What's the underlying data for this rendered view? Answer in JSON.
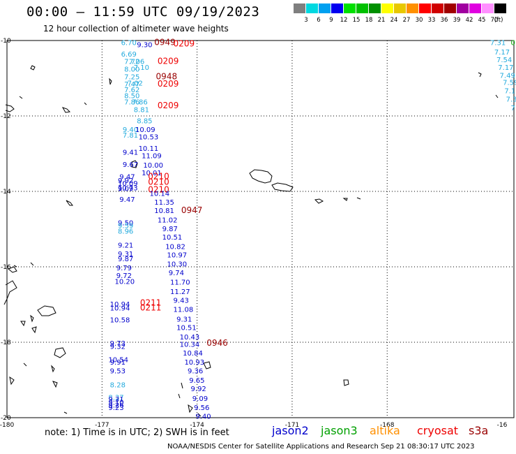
{
  "header": {
    "title": "00:00 — 11:59 UTC 09/19/2023",
    "subtitle": "12 hour collection of altimeter wave heights"
  },
  "color_legend": {
    "labels": [
      "3",
      "6",
      "9",
      "12",
      "15",
      "18",
      "21",
      "24",
      "27",
      "30",
      "33",
      "36",
      "39",
      "42",
      "45",
      "70",
      "(ft)"
    ],
    "colors": [
      "#7f7f7f",
      "#00d8e0",
      "#00a0f0",
      "#0000f0",
      "#00e000",
      "#00c000",
      "#009000",
      "#ffff00",
      "#e8c800",
      "#ff9000",
      "#ff0000",
      "#d00000",
      "#a00000",
      "#a000a0",
      "#e000e0",
      "#ff90ff",
      "#000000"
    ]
  },
  "map": {
    "x_labels": [
      "-180",
      "-177",
      "-174",
      "-171",
      "-168",
      "-16"
    ],
    "y_labels": [
      "-10",
      "-12",
      "-14",
      "-16",
      "-18",
      "-20"
    ],
    "points": [
      {
        "t": "6.70",
        "c": "#22aadd",
        "lat": -10.05,
        "lon": -176.4
      },
      {
        "t": "9.30",
        "c": "#0000cc",
        "lat": -10.1,
        "lon": -175.9
      },
      {
        "t": "0949",
        "c": "#990000",
        "lat": -10.05,
        "lon": -175.35
      },
      {
        "t": "0209",
        "c": "#ee0000",
        "lat": -10.08,
        "lon": -174.75
      },
      {
        "t": "6.69",
        "c": "#22aadd",
        "lat": -10.35,
        "lon": -176.4
      },
      {
        "t": "7.06",
        "c": "#22aadd",
        "lat": -10.55,
        "lon": -176.15
      },
      {
        "t": "7.72",
        "c": "#22aadd",
        "lat": -10.55,
        "lon": -176.3
      },
      {
        "t": "0209",
        "c": "#ee0000",
        "lat": -10.55,
        "lon": -175.25
      },
      {
        "t": "7.10",
        "c": "#22aadd",
        "lat": -10.7,
        "lon": -176.0
      },
      {
        "t": "8.00",
        "c": "#22aadd",
        "lat": -10.75,
        "lon": -176.3
      },
      {
        "t": "7.25",
        "c": "#22aadd",
        "lat": -10.95,
        "lon": -176.3
      },
      {
        "t": "0948",
        "c": "#990000",
        "lat": -10.95,
        "lon": -175.3
      },
      {
        "t": "7.02",
        "c": "#22aadd",
        "lat": -11.12,
        "lon": -176.2
      },
      {
        "t": "7.47",
        "c": "#22aadd",
        "lat": -11.15,
        "lon": -176.3
      },
      {
        "t": "0209",
        "c": "#ee0000",
        "lat": -11.15,
        "lon": -175.25
      },
      {
        "t": "7.62",
        "c": "#22aadd",
        "lat": -11.3,
        "lon": -176.3
      },
      {
        "t": "8.50",
        "c": "#22aadd",
        "lat": -11.45,
        "lon": -176.3
      },
      {
        "t": "7.86",
        "c": "#22aadd",
        "lat": -11.62,
        "lon": -176.3
      },
      {
        "t": "7.86",
        "c": "#22aadd",
        "lat": -11.62,
        "lon": -176.05
      },
      {
        "t": "0209",
        "c": "#ee0000",
        "lat": -11.72,
        "lon": -175.25
      },
      {
        "t": "8.81",
        "c": "#22aadd",
        "lat": -11.82,
        "lon": -176.0
      },
      {
        "t": "8.85",
        "c": "#22aadd",
        "lat": -12.12,
        "lon": -175.9
      },
      {
        "t": "9.40",
        "c": "#22aadd",
        "lat": -12.35,
        "lon": -176.35
      },
      {
        "t": "10.09",
        "c": "#0000cc",
        "lat": -12.35,
        "lon": -175.95
      },
      {
        "t": "7.81",
        "c": "#22aadd",
        "lat": -12.5,
        "lon": -176.35
      },
      {
        "t": "10.53",
        "c": "#0000cc",
        "lat": -12.55,
        "lon": -175.85
      },
      {
        "t": "10.11",
        "c": "#0000cc",
        "lat": -12.85,
        "lon": -175.85
      },
      {
        "t": "9.41",
        "c": "#0000cc",
        "lat": -12.95,
        "lon": -176.35
      },
      {
        "t": "11.09",
        "c": "#0000cc",
        "lat": -13.05,
        "lon": -175.75
      },
      {
        "t": "10.00",
        "c": "#0000cc",
        "lat": -13.3,
        "lon": -175.7
      },
      {
        "t": "9.67",
        "c": "#0000cc",
        "lat": -13.28,
        "lon": -176.35
      },
      {
        "t": "10.01",
        "c": "#0000cc",
        "lat": -13.5,
        "lon": -175.75
      },
      {
        "t": "9.47",
        "c": "#0000cc",
        "lat": -13.6,
        "lon": -176.45
      },
      {
        "t": "0210",
        "c": "#ee0000",
        "lat": -13.6,
        "lon": -175.55
      },
      {
        "t": "9.92",
        "c": "#0000cc",
        "lat": -13.7,
        "lon": -176.5
      },
      {
        "t": "0210",
        "c": "#ee0000",
        "lat": -13.75,
        "lon": -175.55
      },
      {
        "t": "10.09",
        "c": "#0000cc",
        "lat": -13.78,
        "lon": -176.5
      },
      {
        "t": "10.73",
        "c": "#0000cc",
        "lat": -13.9,
        "lon": -176.5
      },
      {
        "t": "0210",
        "c": "#ee0000",
        "lat": -13.95,
        "lon": -175.55
      },
      {
        "t": "9.09",
        "c": "#0000cc",
        "lat": -13.92,
        "lon": -176.5
      },
      {
        "t": "10.14",
        "c": "#0000cc",
        "lat": -14.05,
        "lon": -175.5
      },
      {
        "t": "9.47",
        "c": "#0000cc",
        "lat": -14.2,
        "lon": -176.45
      },
      {
        "t": "11.35",
        "c": "#0000cc",
        "lat": -14.28,
        "lon": -175.35
      },
      {
        "t": "10.81",
        "c": "#0000cc",
        "lat": -14.5,
        "lon": -175.35
      },
      {
        "t": "0947",
        "c": "#990000",
        "lat": -14.5,
        "lon": -174.5
      },
      {
        "t": "11.02",
        "c": "#0000cc",
        "lat": -14.75,
        "lon": -175.25
      },
      {
        "t": "9.50",
        "c": "#0000cc",
        "lat": -14.82,
        "lon": -176.5
      },
      {
        "t": "9.59",
        "c": "#22aadd",
        "lat": -14.9,
        "lon": -176.5
      },
      {
        "t": "9.87",
        "c": "#0000cc",
        "lat": -14.98,
        "lon": -175.1
      },
      {
        "t": "8.96",
        "c": "#22aadd",
        "lat": -15.05,
        "lon": -176.5
      },
      {
        "t": "10.51",
        "c": "#0000cc",
        "lat": -15.2,
        "lon": -175.1
      },
      {
        "t": "9.21",
        "c": "#0000cc",
        "lat": -15.42,
        "lon": -176.5
      },
      {
        "t": "10.82",
        "c": "#0000cc",
        "lat": -15.45,
        "lon": -175.0
      },
      {
        "t": "9.31",
        "c": "#0000cc",
        "lat": -15.65,
        "lon": -176.5
      },
      {
        "t": "10.97",
        "c": "#0000cc",
        "lat": -15.68,
        "lon": -174.95
      },
      {
        "t": "9.87",
        "c": "#0000cc",
        "lat": -15.78,
        "lon": -176.5
      },
      {
        "t": "10.30",
        "c": "#0000cc",
        "lat": -15.92,
        "lon": -174.95
      },
      {
        "t": "9.79",
        "c": "#0000cc",
        "lat": -16.02,
        "lon": -176.55
      },
      {
        "t": "9.74",
        "c": "#0000cc",
        "lat": -16.15,
        "lon": -174.9
      },
      {
        "t": "9.72",
        "c": "#0000cc",
        "lat": -16.22,
        "lon": -176.55
      },
      {
        "t": "10.20",
        "c": "#0000cc",
        "lat": -16.38,
        "lon": -176.6
      },
      {
        "t": "11.70",
        "c": "#0000cc",
        "lat": -16.4,
        "lon": -174.85
      },
      {
        "t": "11.27",
        "c": "#0000cc",
        "lat": -16.65,
        "lon": -174.85
      },
      {
        "t": "9.43",
        "c": "#0000cc",
        "lat": -16.88,
        "lon": -174.75
      },
      {
        "t": "10.94",
        "c": "#0000cc",
        "lat": -16.98,
        "lon": -176.75
      },
      {
        "t": "0211",
        "c": "#ee0000",
        "lat": -16.95,
        "lon": -175.8
      },
      {
        "t": "10.94",
        "c": "#0000cc",
        "lat": -17.08,
        "lon": -176.75
      },
      {
        "t": "0211",
        "c": "#ee0000",
        "lat": -17.08,
        "lon": -175.8
      },
      {
        "t": "11.08",
        "c": "#0000cc",
        "lat": -17.12,
        "lon": -174.75
      },
      {
        "t": "10.58",
        "c": "#0000cc",
        "lat": -17.4,
        "lon": -176.75
      },
      {
        "t": "9.31",
        "c": "#0000cc",
        "lat": -17.38,
        "lon": -174.65
      },
      {
        "t": "10.51",
        "c": "#0000cc",
        "lat": -17.6,
        "lon": -174.65
      },
      {
        "t": "10.43",
        "c": "#0000cc",
        "lat": -17.85,
        "lon": -174.55
      },
      {
        "t": "9.73",
        "c": "#0000cc",
        "lat": -18.02,
        "lon": -176.75
      },
      {
        "t": "10.34",
        "c": "#0000cc",
        "lat": -18.05,
        "lon": -174.55
      },
      {
        "t": "0946",
        "c": "#990000",
        "lat": -18.02,
        "lon": -173.7
      },
      {
        "t": "9.32",
        "c": "#0000cc",
        "lat": -18.1,
        "lon": -176.75
      },
      {
        "t": "10.84",
        "c": "#0000cc",
        "lat": -18.28,
        "lon": -174.45
      },
      {
        "t": "10.54",
        "c": "#0000cc",
        "lat": -18.45,
        "lon": -176.8
      },
      {
        "t": "9.91",
        "c": "#0000cc",
        "lat": -18.52,
        "lon": -176.75
      },
      {
        "t": "10.93",
        "c": "#0000cc",
        "lat": -18.52,
        "lon": -174.4
      },
      {
        "t": "9.53",
        "c": "#0000cc",
        "lat": -18.75,
        "lon": -176.75
      },
      {
        "t": "9.36",
        "c": "#0000cc",
        "lat": -18.75,
        "lon": -174.3
      },
      {
        "t": "9.65",
        "c": "#0000cc",
        "lat": -19.0,
        "lon": -174.25
      },
      {
        "t": "8.28",
        "c": "#22aadd",
        "lat": -19.12,
        "lon": -176.75
      },
      {
        "t": "9.92",
        "c": "#0000cc",
        "lat": -19.22,
        "lon": -174.2
      },
      {
        "t": "8.37",
        "c": "#22aadd",
        "lat": -19.45,
        "lon": -176.8
      },
      {
        "t": "9.31",
        "c": "#0000cc",
        "lat": -19.5,
        "lon": -176.8
      },
      {
        "t": "9.09",
        "c": "#0000cc",
        "lat": -19.48,
        "lon": -174.15
      },
      {
        "t": "9.10",
        "c": "#0000cc",
        "lat": -19.58,
        "lon": -176.8
      },
      {
        "t": "9.26",
        "c": "#0000cc",
        "lat": -19.66,
        "lon": -176.8
      },
      {
        "t": "9.23",
        "c": "#0000cc",
        "lat": -19.72,
        "lon": -176.8
      },
      {
        "t": "9.56",
        "c": "#0000cc",
        "lat": -19.72,
        "lon": -174.1
      },
      {
        "t": "9.40",
        "c": "#0000cc",
        "lat": -19.95,
        "lon": -174.05
      },
      {
        "t": "7.31",
        "c": "#22aadd",
        "lat": -10.05,
        "lon": -164.75
      },
      {
        "t": "0",
        "c": "#00aa00",
        "lat": -10.05,
        "lon": -164.1
      },
      {
        "t": "7.17",
        "c": "#22aadd",
        "lat": -10.3,
        "lon": -164.62
      },
      {
        "t": "7.54",
        "c": "#22aadd",
        "lat": -10.5,
        "lon": -164.55
      },
      {
        "t": "7.17",
        "c": "#22aadd",
        "lat": -10.7,
        "lon": -164.5
      },
      {
        "t": "7.49",
        "c": "#22aadd",
        "lat": -10.92,
        "lon": -164.45
      },
      {
        "t": "7.59",
        "c": "#22aadd",
        "lat": -11.1,
        "lon": -164.35
      },
      {
        "t": "7.1",
        "c": "#22aadd",
        "lat": -11.32,
        "lon": -164.3
      },
      {
        "t": "7.3",
        "c": "#22aadd",
        "lat": -11.55,
        "lon": -164.25
      },
      {
        "t": "7",
        "c": "#22aadd",
        "lat": -11.78,
        "lon": -164.1
      }
    ]
  },
  "footer": {
    "note": "note:  1) Time is in UTC; 2) SWH is in feet",
    "satellites": [
      {
        "name": "jason2",
        "color": "#0000cc"
      },
      {
        "name": "jason3",
        "color": "#00a000"
      },
      {
        "name": "altika",
        "color": "#ff9000"
      },
      {
        "name": "cryosat",
        "color": "#ee0000"
      },
      {
        "name": "s3a",
        "color": "#990000"
      }
    ],
    "credit": "NOAA/NESDIS Center for Satellite Applications and Research    Sep 21 08:30:17 UTC 2023"
  }
}
